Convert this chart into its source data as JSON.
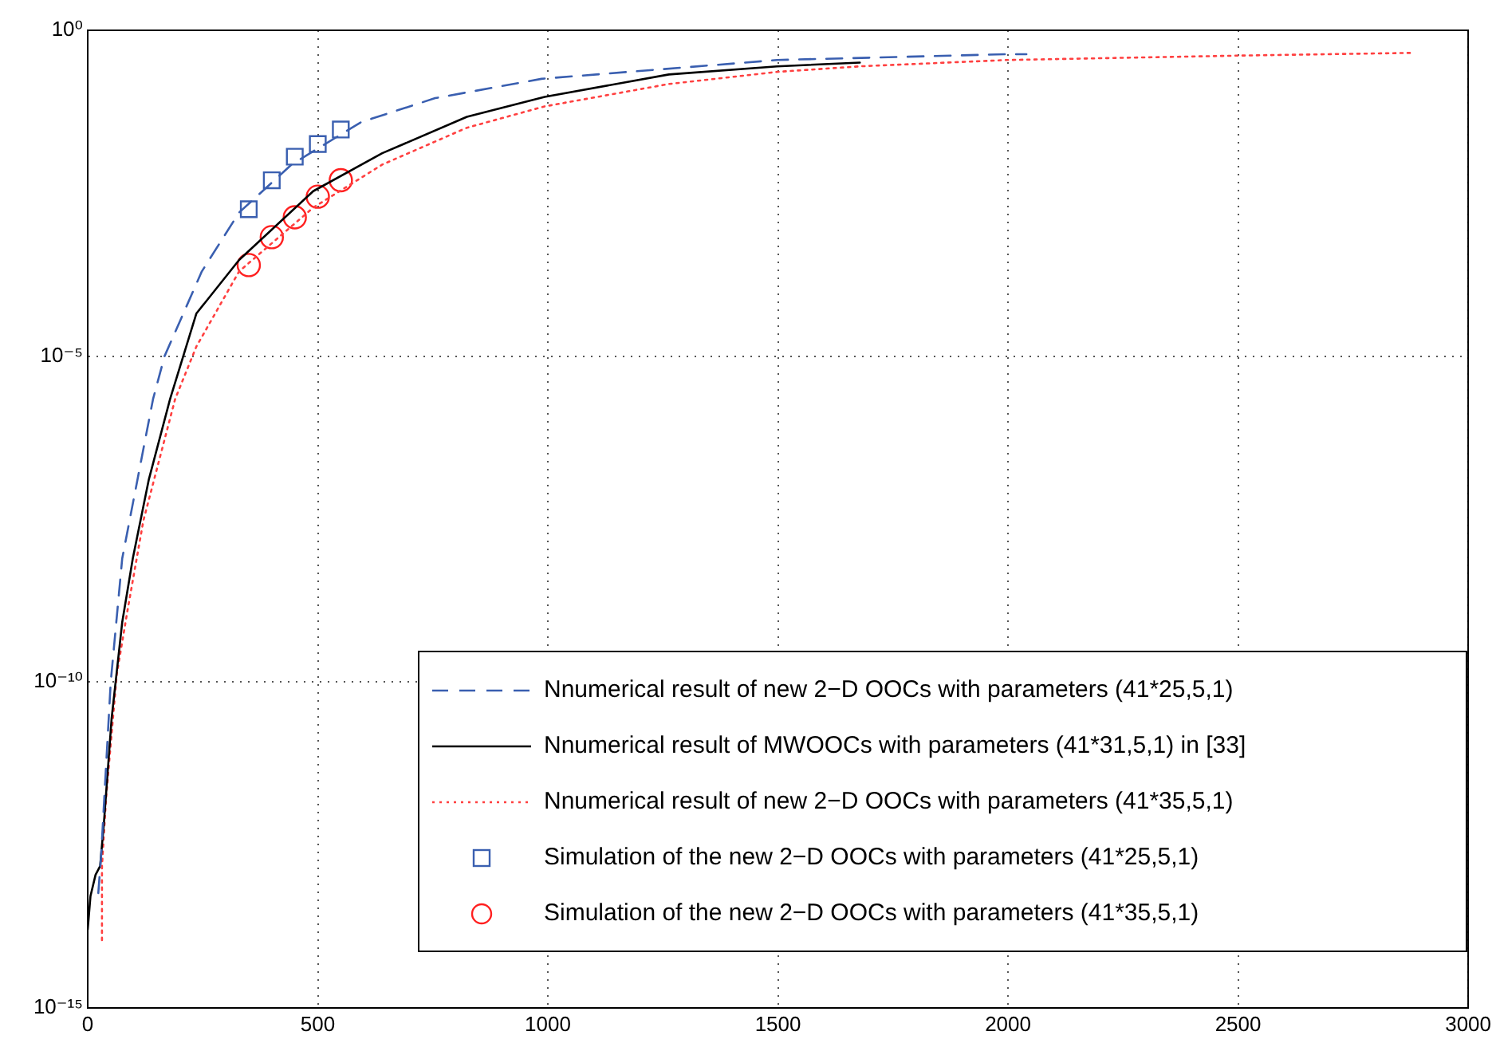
{
  "chart_data": {
    "type": "line",
    "xlim": [
      0,
      3000
    ],
    "xticks": [
      0,
      500,
      1000,
      1500,
      2000,
      2500,
      3000
    ],
    "ylim": [
      1e-15,
      1
    ],
    "yticks": [
      {
        "value": 1e-15,
        "label": "10⁻¹⁵"
      },
      {
        "value": 1e-10,
        "label": "10⁻¹⁰"
      },
      {
        "value": 1e-05,
        "label": "10⁻⁵"
      },
      {
        "value": 1,
        "label": "10⁰"
      }
    ],
    "log": "y",
    "grid": true,
    "legend": "bottom right",
    "series": [
      {
        "name": "Nnumerical result of new 2−D OOCs with parameters (41*25,5,1)",
        "color": "#3a5fb0",
        "line_style": "dashed",
        "marker": "none",
        "x": [
          23,
          29,
          50,
          75,
          142,
          167,
          248,
          329,
          443,
          594,
          755,
          986,
          1498,
          1997,
          2040
        ],
        "values": [
          5.8e-14,
          2.1e-13,
          1e-10,
          7.9e-09,
          2.2e-06,
          1e-05,
          0.0002,
          0.0016,
          0.0087,
          0.039,
          0.091,
          0.18,
          0.35,
          0.43,
          0.43
        ]
      },
      {
        "name": "Nnumerical result of MWOOCs with parameters (41*31,5,1) in [33]",
        "color": "#000000",
        "line_style": "solid",
        "marker": "none",
        "x": [
          0,
          6,
          17,
          27,
          35,
          52,
          75,
          98,
          133,
          179,
          236,
          329,
          490,
          640,
          824,
          993,
          1263,
          1498,
          1678
        ],
        "values": [
          1.6e-14,
          5.2e-14,
          1.1e-13,
          1.5e-13,
          6.6e-13,
          2.8e-11,
          8.3e-10,
          7.9e-09,
          1.3e-07,
          2.2e-06,
          4.5e-05,
          0.0003,
          0.0034,
          0.013,
          0.047,
          0.095,
          0.21,
          0.28,
          0.32
        ]
      },
      {
        "name": "Nnumerical result of new 2−D OOCs with parameters (41*35,5,1)",
        "color": "#ff4040",
        "line_style": "dotted",
        "marker": "none",
        "x": [
          31,
          31,
          40,
          63,
          86,
          121,
          190,
          236,
          329,
          490,
          640,
          824,
          993,
          1263,
          1498,
          1678,
          1997,
          2509,
          2875
        ],
        "values": [
          1.1e-14,
          1.5e-13,
          1.7e-12,
          1.3e-10,
          1.2e-09,
          3e-08,
          2.2e-06,
          1.4e-05,
          0.0002,
          0.0019,
          0.0087,
          0.032,
          0.068,
          0.15,
          0.23,
          0.28,
          0.35,
          0.41,
          0.45
        ]
      },
      {
        "name": "Simulation of the new 2−D OOCs with parameters (41*25,5,1)",
        "type": "scatter",
        "color": "#3a5fb0",
        "marker": "square",
        "x": [
          350,
          400,
          450,
          500,
          550
        ],
        "values": [
          0.0018,
          0.005,
          0.0115,
          0.018,
          0.03
        ]
      },
      {
        "name": "Simulation of the new 2−D OOCs with parameters (41*35,5,1)",
        "type": "scatter",
        "color": "#ff2020",
        "marker": "circle",
        "x": [
          350,
          400,
          450,
          500,
          550
        ],
        "values": [
          0.00025,
          0.00067,
          0.00135,
          0.0028,
          0.005
        ]
      }
    ]
  }
}
